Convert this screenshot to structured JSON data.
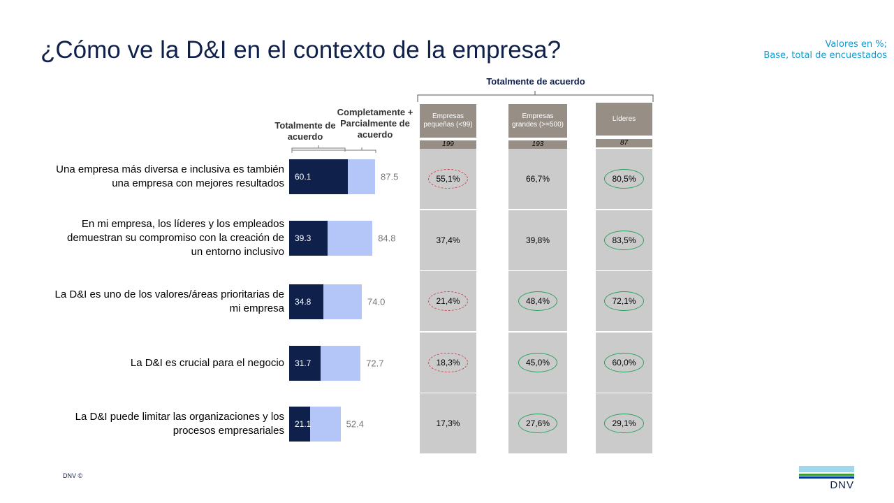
{
  "title": "¿Cómo ve la D&I en el contexto de la empresa?",
  "note": [
    "Valores en %;",
    "Base, total de encuestados"
  ],
  "footer": "DNV ©",
  "logo": {
    "text": "DNV",
    "colors": [
      "#9fd8ec",
      "#3f9c35",
      "#003591"
    ]
  },
  "colors": {
    "dark_bar": "#0f204b",
    "light_bar": "#b3c6f7",
    "header_bg": "#978e85",
    "cell_bg": "#cbcbcb",
    "negative_highlight": "#d9404f",
    "positive_highlight": "#27a25a"
  },
  "chart_data": {
    "type": "bar",
    "orientation": "horizontal",
    "stacked": "overlay",
    "categories": [
      "Una empresa más diversa e inclusiva es también una empresa con mejores resultados",
      "En mi empresa, los líderes y los empleados demuestran su compromiso con la creación de un entorno inclusivo",
      "La D&I es uno de los valores/áreas prioritarias de mi empresa",
      "La D&I es crucial para el negocio",
      "La D&I puede limitar las organizaciones y los procesos empresariales"
    ],
    "series": [
      {
        "name": "Totalmente de acuerdo",
        "values": [
          60.1,
          39.3,
          34.8,
          31.7,
          21.1
        ],
        "labels": [
          "60.1",
          "39.3",
          "34.8",
          "31.7",
          "21.1"
        ]
      },
      {
        "name": "Completamente + Parcialmente de acuerdo",
        "values": [
          87.5,
          84.8,
          74.0,
          72.7,
          52.4
        ],
        "labels": [
          "87.5",
          "84.8",
          "74.0",
          "72.7",
          "52.4"
        ]
      }
    ],
    "xlim": [
      0,
      100
    ]
  },
  "table": {
    "group_header": "Totalmente de acuerdo",
    "columns": [
      {
        "label": "Empresas pequeñas (<99)",
        "base": "199",
        "values": [
          "55,1%",
          "37,4%",
          "21,4%",
          "18,3%",
          "17,3%"
        ],
        "highlight": [
          "negative",
          "",
          "negative",
          "negative",
          ""
        ]
      },
      {
        "label": "Empresas grandes (>=500)",
        "base": "193",
        "values": [
          "66,7%",
          "39,8%",
          "48,4%",
          "45,0%",
          "27,6%"
        ],
        "highlight": [
          "",
          "",
          "positive",
          "positive",
          "positive"
        ]
      },
      {
        "label": "Líderes",
        "base": "87",
        "values": [
          "80,5%",
          "83,5%",
          "72,1%",
          "60,0%",
          "29,1%"
        ],
        "highlight": [
          "positive",
          "positive",
          "positive",
          "positive",
          "positive"
        ]
      }
    ]
  }
}
